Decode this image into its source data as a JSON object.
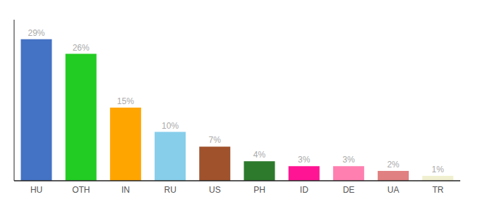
{
  "chart_data": {
    "type": "bar",
    "categories": [
      "HU",
      "OTH",
      "IN",
      "RU",
      "US",
      "PH",
      "ID",
      "DE",
      "UA",
      "TR"
    ],
    "values": [
      29,
      26,
      15,
      10,
      7,
      4,
      3,
      3,
      2,
      1
    ],
    "value_labels": [
      "29%",
      "26%",
      "15%",
      "10%",
      "7%",
      "4%",
      "3%",
      "3%",
      "2%",
      "1%"
    ],
    "colors": [
      "#4472c4",
      "#22cc22",
      "#ffa500",
      "#87ceeb",
      "#a0522d",
      "#2d7a2d",
      "#ff1493",
      "#ff80b0",
      "#e08080",
      "#f0f0d0"
    ],
    "ylim": [
      0,
      33
    ],
    "yticks": [],
    "grid": false,
    "data_labels": true,
    "tick_labels": "x"
  }
}
